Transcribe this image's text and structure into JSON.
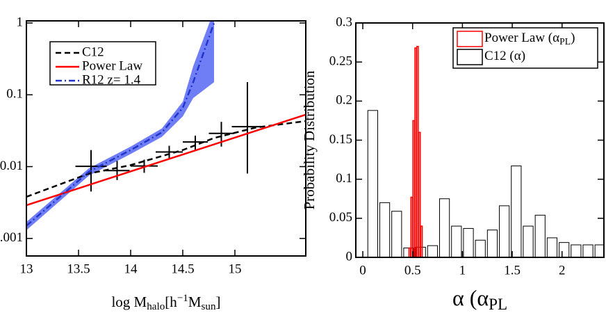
{
  "chart_data": [
    {
      "type": "line",
      "log_y": true,
      "xlim": [
        13,
        15.68
      ],
      "ylim": [
        0.00057,
        1.07
      ],
      "xticks": [
        13,
        13.5,
        14,
        14.5,
        15
      ],
      "yticks": [
        0.001,
        0.01,
        0.1,
        1
      ],
      "x_label": [
        {
          "text": "log M"
        },
        {
          "text": "halo",
          "sub": true
        },
        {
          "text": "[h"
        },
        {
          "text": "−1",
          "sup": true
        },
        {
          "text": "M"
        },
        {
          "text": "sun",
          "sub": true
        },
        {
          "text": "]"
        }
      ],
      "series": [
        {
          "name": "C12",
          "color": "#000000",
          "dash": "dashed",
          "x": [
            13,
            13.6,
            14,
            14.5,
            14.8,
            15.2,
            15.68
          ],
          "values": [
            0.0038,
            0.008,
            0.0105,
            0.017,
            0.025,
            0.035,
            0.043
          ]
        },
        {
          "name": "Power Law",
          "color": "#ff0000",
          "dash": "solid",
          "x": [
            13,
            15.68
          ],
          "values": [
            0.0029,
            0.053
          ]
        },
        {
          "name": "R12 z= 1.4",
          "color": "#2233cc",
          "dash": "dashdot",
          "band_color": "#6f7ef5",
          "x": [
            13,
            13.6,
            14,
            14.3,
            14.5,
            14.6,
            14.8
          ],
          "values": [
            0.0015,
            0.0085,
            0.017,
            0.03,
            0.066,
            0.15,
            1.0
          ],
          "band_lower": [
            0.0013,
            0.0075,
            0.015,
            0.026,
            0.05,
            0.09,
            0.15
          ],
          "band_upper": [
            0.0017,
            0.0095,
            0.019,
            0.034,
            0.08,
            0.25,
            1.5
          ]
        }
      ],
      "points": {
        "color": "#000000",
        "x": [
          13.62,
          13.87,
          14.13,
          14.37,
          14.62,
          14.87,
          15.12
        ],
        "values": [
          0.0101,
          0.0088,
          0.0102,
          0.016,
          0.022,
          0.029,
          0.036
        ],
        "xerr": [
          0.15,
          0.12,
          0.13,
          0.13,
          0.12,
          0.12,
          0.15
        ],
        "y_low": [
          0.0045,
          0.0065,
          0.0082,
          0.013,
          0.017,
          0.019,
          0.008
        ],
        "y_high": [
          0.017,
          0.012,
          0.0125,
          0.0195,
          0.027,
          0.042,
          0.15
        ]
      }
    },
    {
      "type": "histogram",
      "xlim": [
        -0.07,
        2.42
      ],
      "ylim": [
        0,
        0.3
      ],
      "xticks": [
        0,
        0.5,
        1,
        1.5,
        2
      ],
      "yticks": [
        0,
        0.05,
        0.1,
        0.15,
        0.2,
        0.25,
        0.3
      ],
      "y_label": "Probability Distribution",
      "x_label": [
        {
          "text": "α (α"
        },
        {
          "text": "PL",
          "sub": true
        }
      ],
      "series": [
        {
          "name": "C12 (α)",
          "color": "#000000",
          "bins": [
            0.04,
            0.16,
            0.28,
            0.4,
            0.52,
            0.64,
            0.76,
            0.88,
            1.0,
            1.12,
            1.24,
            1.36,
            1.48,
            1.6,
            1.72,
            1.84,
            1.96,
            2.08,
            2.2,
            2.32,
            2.44
          ],
          "values": [
            0.188,
            0.07,
            0.059,
            0.012,
            0.013,
            0.015,
            0.075,
            0.04,
            0.037,
            0.022,
            0.035,
            0.066,
            0.117,
            0.04,
            0.054,
            0.025,
            0.019,
            0.016,
            0.016,
            0.016
          ]
        },
        {
          "name": "Power Law (α",
          "name_sub": "PL",
          "name_end": ")",
          "color": "#ff0000",
          "bins": [
            0.46,
            0.48,
            0.5,
            0.52,
            0.54,
            0.56,
            0.58,
            0.6
          ],
          "values": [
            0.012,
            0.077,
            0.175,
            0.268,
            0.27,
            0.16,
            0.04
          ]
        }
      ]
    }
  ]
}
